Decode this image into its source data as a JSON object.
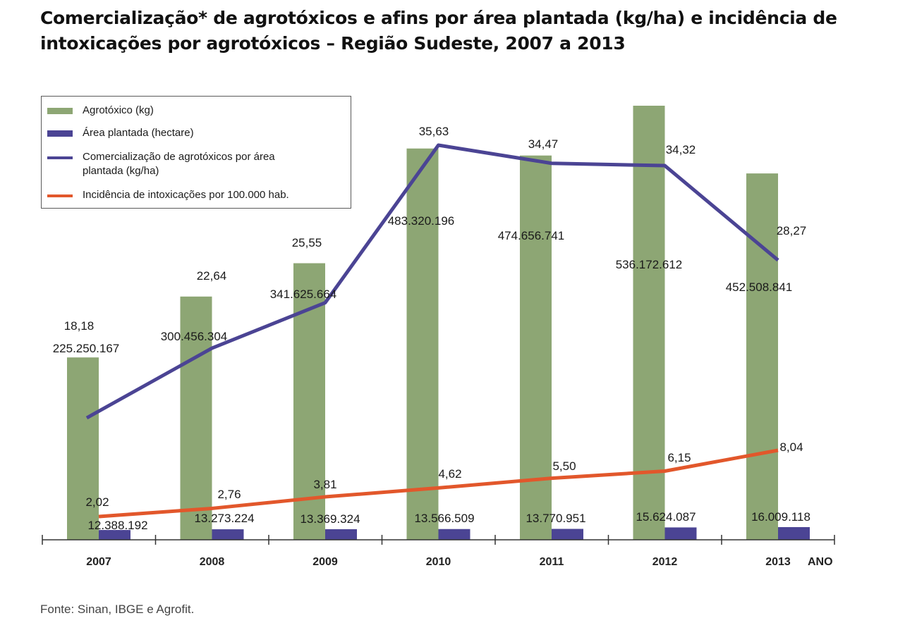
{
  "title_lines": [
    "Comercialização* de agrotóxicos e afins por área plantada (kg/ha) e incidência de",
    "intoxicações por agrotóxicos – Região Sudeste, 2007 a 2013"
  ],
  "source": "Fonte: Sinan, IBGE e Agrofit.",
  "colors": {
    "agrotoxico": "#8da674",
    "area": "#4b4494",
    "comercializacao": "#4b4494",
    "incidencia": "#e2572b",
    "axis": "#333333"
  },
  "chart_data": {
    "type": "bar+line",
    "title": "Comercialização* de agrotóxicos e afins por área plantada (kg/ha) e incidência de intoxicações por agrotóxicos – Região Sudeste, 2007 a 2013",
    "xlabel": "ANO",
    "ylabel": "",
    "categories": [
      "2007",
      "2008",
      "2009",
      "2010",
      "2011",
      "2012",
      "2013"
    ],
    "grid": false,
    "legend_position": "top-left",
    "series": [
      {
        "name": "Agrotóxico (kg)",
        "kind": "bar",
        "values": [
          225250167,
          300456304,
          341625664,
          483320196,
          474656741,
          536172612,
          452508841
        ],
        "labels": [
          "225.250.167",
          "300.456.304",
          "341.625.664",
          "483.320.196",
          "474.656.741",
          "536.172.612",
          "452.508.841"
        ]
      },
      {
        "name": "Área plantada (hectare)",
        "kind": "bar",
        "values": [
          12388192,
          13273224,
          13369324,
          13566509,
          13770951,
          15624087,
          16009118
        ],
        "labels": [
          "12.388.192",
          "13.273.224",
          "13.369.324",
          "13.566.509",
          "13.770.951",
          "15.624.087",
          "16.009.118"
        ]
      },
      {
        "name": "Comercialização de agrotóxicos por área plantada (kg/ha)",
        "kind": "line",
        "values": [
          18.18,
          22.64,
          25.55,
          35.63,
          34.47,
          34.32,
          28.27
        ],
        "labels": [
          "18,18",
          "22,64",
          "25,55",
          "35,63",
          "34,47",
          "34,32",
          "28,27"
        ]
      },
      {
        "name": "Incidência de intoxicações por 100.000 hab.",
        "kind": "line",
        "values": [
          2.02,
          2.76,
          3.81,
          4.62,
          5.5,
          6.15,
          8.04
        ],
        "labels": [
          "2,02",
          "2,76",
          "3,81",
          "4,62",
          "5,50",
          "6,15",
          "8,04"
        ]
      }
    ],
    "legend": [
      "Agrotóxico (kg)",
      "Área plantada (hectare)",
      "Comercialização de agrotóxicos por área plantada (kg/ha)",
      "Incidência de intoxicações por 100.000 hab."
    ],
    "legend_lines": [
      [
        "Agrotóxico (kg)"
      ],
      [
        "Área plantada (hectare)"
      ],
      [
        "Comercialização de agrotóxicos por área",
        "plantada (kg/ha)"
      ],
      [
        "Incidência de intoxicações por 100.000 hab."
      ]
    ]
  }
}
